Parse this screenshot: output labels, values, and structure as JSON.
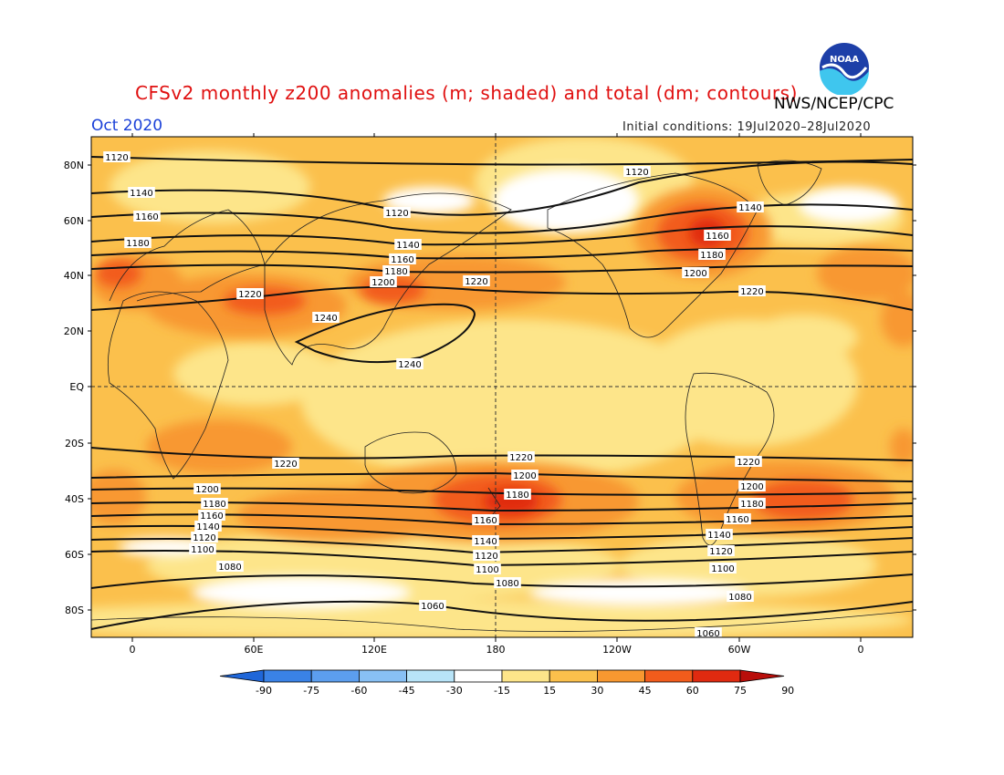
{
  "title": "CFSv2 monthly z200 anomalies (m; shaded) and total (dm; contours)",
  "organization": "NWS/NCEP/CPC",
  "logo_text": "NOAA",
  "month": "Oct 2020",
  "initial_conditions": "Initial conditions: 19Jul2020–28Jul2020",
  "lat_labels": [
    "80N",
    "60N",
    "40N",
    "20N",
    "EQ",
    "20S",
    "40S",
    "60S",
    "80S"
  ],
  "lon_labels": [
    "0",
    "60E",
    "120E",
    "180",
    "120W",
    "60W",
    "0"
  ],
  "colorbar": {
    "ticks": [
      "-90",
      "-75",
      "-60",
      "-45",
      "-30",
      "-15",
      "15",
      "30",
      "45",
      "60",
      "75",
      "90"
    ],
    "colors": [
      "#1f66d8",
      "#3a82e6",
      "#5c9eee",
      "#88c0f4",
      "#b8e4f8",
      "#ffffff",
      "#fde58a",
      "#fbc04c",
      "#f89830",
      "#f25c1c",
      "#e02a10",
      "#b80e0a"
    ]
  },
  "contour_labels": {
    "c1060": "1060",
    "c1080": "1080",
    "c1100": "1100",
    "c1120": "1120",
    "c1140": "1140",
    "c1160": "1160",
    "c1180": "1180",
    "c1200": "1200",
    "c1220": "1220",
    "c1240": "1240"
  }
}
